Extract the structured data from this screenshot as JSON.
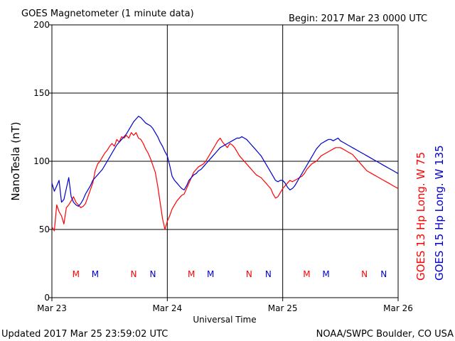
{
  "chart_data": {
    "type": "line",
    "title": "GOES Magnetometer (1 minute data)",
    "begin_label": "Begin:  2017 Mar 23 0000 UTC",
    "ylabel": "NanoTesla (nT)",
    "xlabel": "Universal Time",
    "ylim": [
      0,
      200
    ],
    "yticks": [
      "0",
      "50",
      "100",
      "150",
      "200"
    ],
    "xlim": [
      0,
      72
    ],
    "x_unit": "hours since 2017 Mar 23 0000 UTC",
    "xticks": [
      {
        "x": 0,
        "label": "Mar 23"
      },
      {
        "x": 24,
        "label": "Mar 24"
      },
      {
        "x": 48,
        "label": "Mar 25"
      },
      {
        "x": 72,
        "label": "Mar 26"
      }
    ],
    "grid": true,
    "series": [
      {
        "name": "GOES 13 Hp  Long. W 75",
        "color": "#ff0000",
        "x": [
          0,
          0.5,
          1,
          1.5,
          2,
          2.5,
          3,
          3.5,
          4,
          4.5,
          5,
          5.5,
          6,
          6.5,
          7,
          7.5,
          8,
          8.5,
          9,
          9.5,
          10,
          10.5,
          11,
          11.5,
          12,
          12.5,
          13,
          13.5,
          14,
          14.5,
          15,
          15.5,
          16,
          16.5,
          17,
          17.5,
          18,
          18.5,
          19,
          19.5,
          20,
          20.5,
          21,
          21.5,
          22,
          22.5,
          23,
          23.5,
          24,
          24.5,
          25,
          25.5,
          26,
          26.5,
          27,
          27.5,
          28,
          28.5,
          29,
          29.5,
          30,
          30.5,
          31,
          31.5,
          32,
          32.5,
          33,
          33.5,
          34,
          34.5,
          35,
          35.5,
          36,
          36.5,
          37,
          37.5,
          38,
          38.5,
          39,
          39.5,
          40,
          40.5,
          41,
          41.5,
          42,
          42.5,
          43,
          43.5,
          44,
          44.5,
          45,
          45.5,
          46,
          46.5,
          47,
          47.5,
          48,
          48.5,
          49,
          49.5,
          50,
          50.5,
          51,
          51.5,
          52,
          52.5,
          53,
          53.5,
          54,
          54.5,
          55,
          55.5,
          56,
          56.5,
          57,
          57.5,
          58,
          58.5,
          59,
          59.5,
          60,
          60.5,
          61,
          61.5,
          62,
          62.5,
          63,
          63.5,
          64,
          64.5,
          65,
          65.5,
          66,
          66.5,
          67,
          67.5,
          68,
          68.5,
          69,
          69.5,
          70,
          70.5,
          71,
          71.5,
          72
        ],
        "values": [
          52,
          49,
          68,
          63,
          60,
          54,
          66,
          68,
          71,
          74,
          70,
          68,
          66,
          67,
          69,
          74,
          79,
          84,
          93,
          98,
          100,
          103,
          106,
          108,
          111,
          113,
          111,
          116,
          114,
          118,
          117,
          119,
          117,
          121,
          119,
          121,
          117,
          116,
          113,
          109,
          106,
          102,
          97,
          92,
          82,
          70,
          58,
          50,
          56,
          60,
          65,
          68,
          71,
          73,
          75,
          76,
          80,
          84,
          88,
          92,
          94,
          96,
          97,
          98,
          100,
          103,
          106,
          109,
          112,
          115,
          117,
          114,
          112,
          110,
          113,
          112,
          110,
          107,
          104,
          102,
          100,
          98,
          96,
          94,
          92,
          90,
          89,
          88,
          86,
          84,
          82,
          80,
          76,
          73,
          74,
          77,
          80,
          82,
          84,
          86,
          85,
          86,
          87,
          88,
          89,
          91,
          94,
          96,
          98,
          99,
          100,
          102,
          104,
          105,
          106,
          107,
          108,
          109,
          110,
          110,
          110,
          109,
          108,
          107,
          106,
          105,
          103,
          101,
          99,
          97,
          95,
          93,
          92,
          91,
          90,
          89,
          88,
          87,
          86,
          85,
          84,
          83,
          82,
          81,
          80
        ],
        "markers": [
          {
            "x": 5,
            "label": "M"
          },
          {
            "x": 17,
            "label": "N"
          },
          {
            "x": 29,
            "label": "M"
          },
          {
            "x": 41,
            "label": "N"
          },
          {
            "x": 53,
            "label": "M"
          },
          {
            "x": 65,
            "label": "N"
          }
        ]
      },
      {
        "name": "GOES 15 Hp  Long. W 135",
        "color": "#0000cc",
        "x": [
          0,
          0.5,
          1,
          1.5,
          2,
          2.5,
          3,
          3.5,
          4,
          4.5,
          5,
          5.5,
          6,
          6.5,
          7,
          7.5,
          8,
          8.5,
          9,
          9.5,
          10,
          10.5,
          11,
          11.5,
          12,
          12.5,
          13,
          13.5,
          14,
          14.5,
          15,
          15.5,
          16,
          16.5,
          17,
          17.5,
          18,
          18.5,
          19,
          19.5,
          20,
          20.5,
          21,
          21.5,
          22,
          22.5,
          23,
          23.5,
          24,
          24.5,
          25,
          25.5,
          26,
          26.5,
          27,
          27.5,
          28,
          28.5,
          29,
          29.5,
          30,
          30.5,
          31,
          31.5,
          32,
          32.5,
          33,
          33.5,
          34,
          34.5,
          35,
          35.5,
          36,
          36.5,
          37,
          37.5,
          38,
          38.5,
          39,
          39.5,
          40,
          40.5,
          41,
          41.5,
          42,
          42.5,
          43,
          43.5,
          44,
          44.5,
          45,
          45.5,
          46,
          46.5,
          47,
          47.5,
          48,
          48.5,
          49,
          49.5,
          50,
          50.5,
          51,
          51.5,
          52,
          52.5,
          53,
          53.5,
          54,
          54.5,
          55,
          55.5,
          56,
          56.5,
          57,
          57.5,
          58,
          58.5,
          59,
          59.5,
          60,
          60.5,
          61,
          61.5,
          62,
          62.5,
          63,
          63.5,
          64,
          64.5,
          65,
          65.5,
          66,
          66.5,
          67,
          67.5,
          68,
          68.5,
          69,
          69.5,
          70,
          70.5,
          71,
          71.5,
          72
        ],
        "values": [
          84,
          78,
          82,
          86,
          70,
          72,
          80,
          88,
          74,
          70,
          68,
          67,
          69,
          72,
          76,
          79,
          82,
          86,
          88,
          90,
          92,
          94,
          97,
          100,
          103,
          106,
          109,
          112,
          114,
          116,
          118,
          120,
          123,
          126,
          129,
          131,
          133,
          132,
          130,
          128,
          127,
          126,
          124,
          121,
          118,
          114,
          111,
          107,
          104,
          97,
          89,
          86,
          84,
          82,
          80,
          79,
          82,
          86,
          88,
          90,
          91,
          93,
          94,
          96,
          98,
          100,
          102,
          104,
          106,
          108,
          110,
          111,
          112,
          113,
          114,
          115,
          116,
          117,
          117,
          118,
          117,
          116,
          114,
          112,
          110,
          108,
          106,
          104,
          101,
          98,
          95,
          92,
          89,
          86,
          85,
          86,
          86,
          84,
          81,
          79,
          80,
          82,
          85,
          88,
          91,
          94,
          97,
          100,
          103,
          106,
          109,
          111,
          113,
          114,
          115,
          116,
          116,
          115,
          116,
          117,
          115,
          114,
          113,
          112,
          111,
          110,
          109,
          108,
          107,
          106,
          105,
          104,
          103,
          102,
          101,
          100,
          99,
          98,
          97,
          96,
          95,
          94,
          93,
          92,
          91
        ],
        "markers": [
          {
            "x": 9,
            "label": "M"
          },
          {
            "x": 21,
            "label": "N"
          },
          {
            "x": 33,
            "label": "M"
          },
          {
            "x": 45,
            "label": "N"
          },
          {
            "x": 57,
            "label": "M"
          },
          {
            "x": 69,
            "label": "N"
          }
        ]
      }
    ]
  },
  "footer": {
    "updated": "Updated 2017 Mar 25 23:59:02 UTC",
    "source": "NOAA/SWPC Boulder, CO USA"
  }
}
